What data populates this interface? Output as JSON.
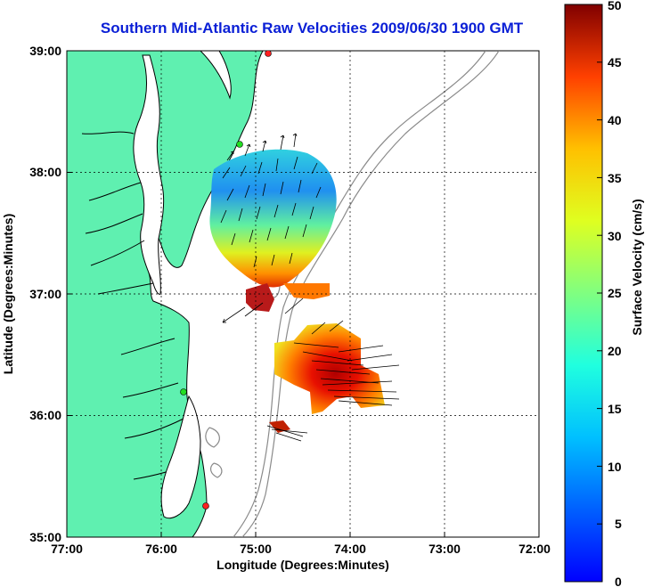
{
  "title": "Southern Mid-Atlantic Raw Velocities 2009/06/30 1900 GMT",
  "axes": {
    "xlabel": "Longitude (Degrees:Minutes)",
    "ylabel": "Latitude (Degrees:Minutes)",
    "xticks": [
      "77:00",
      "76:00",
      "75:00",
      "74:00",
      "73:00",
      "72:00"
    ],
    "yticks": [
      "39:00",
      "38:00",
      "37:00",
      "36:00",
      "35:00"
    ],
    "xlim": [
      -77,
      -72
    ],
    "ylim": [
      35,
      39
    ],
    "grid": "dotted"
  },
  "colorbar": {
    "label": "Surface Velocity (cm/s)",
    "ticks": [
      "50",
      "45",
      "40",
      "35",
      "30",
      "25",
      "20",
      "15",
      "10",
      "5",
      "0"
    ],
    "range": [
      0,
      50
    ]
  },
  "colors": {
    "land": "#5ff0b0",
    "coast": "#000000",
    "bathymetry": "#8a8a8a",
    "title": "#0a1fd6",
    "station": "#ff2020",
    "station_alt": "#22dd22"
  }
}
